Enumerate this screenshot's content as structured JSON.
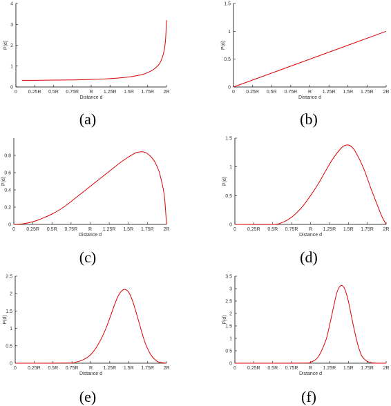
{
  "figure": {
    "curve_color": "#dd0000",
    "axis_color": "#000000"
  },
  "chart_data": [
    {
      "id": "a",
      "type": "line",
      "caption": "(a)",
      "xlabel": "Distance d",
      "ylabel": "P(d)",
      "xlim": [
        0,
        2
      ],
      "ylim": [
        0,
        4
      ],
      "xtick_labels": [
        "0",
        "0.25R",
        "0.5R",
        "0.75R",
        "R",
        "1.25R",
        "1.5R",
        "1.75R",
        "2R"
      ],
      "yticks": [
        0,
        1,
        2,
        3,
        4
      ],
      "ytick_labels": [
        "0",
        "1",
        "2",
        "3",
        "4"
      ],
      "x": [
        0.08,
        0.25,
        0.5,
        0.75,
        1.0,
        1.25,
        1.5,
        1.6,
        1.7,
        1.8,
        1.85,
        1.9,
        1.93,
        1.96,
        1.98,
        1.99,
        1.995,
        2.0
      ],
      "y": [
        0.32,
        0.32,
        0.33,
        0.34,
        0.36,
        0.4,
        0.48,
        0.54,
        0.62,
        0.78,
        0.9,
        1.08,
        1.28,
        1.6,
        2.0,
        2.4,
        2.8,
        3.2
      ]
    },
    {
      "id": "b",
      "type": "line",
      "caption": "(b)",
      "xlabel": "Distance d",
      "ylabel": "P(d)",
      "xlim": [
        0,
        2
      ],
      "ylim": [
        0,
        1.5
      ],
      "xtick_labels": [
        "0",
        "0.25R",
        "0.5R",
        "0.75R",
        "R",
        "1.25R",
        "1.5R",
        "1.75R",
        "2R"
      ],
      "yticks": [
        0,
        0.5,
        1,
        1.5
      ],
      "ytick_labels": [
        "0",
        "0.5",
        "1",
        "1.5"
      ],
      "x": [
        0,
        2
      ],
      "y": [
        0,
        1.0
      ]
    },
    {
      "id": "c",
      "type": "line",
      "caption": "(c)",
      "xlabel": "Distance d",
      "ylabel": "P(d)",
      "xlim": [
        0,
        2
      ],
      "ylim": [
        0,
        1
      ],
      "xtick_labels": [
        "0",
        "0.25R",
        "0.5R",
        "0.75R",
        "R",
        "1.25R",
        "1.5R",
        "1.75R",
        "2R"
      ],
      "yticks": [
        0,
        0.2,
        0.4,
        0.6,
        0.8
      ],
      "ytick_labels": [
        "0",
        "0.2",
        "0.4",
        "0.6",
        "0.8"
      ],
      "x": [
        0,
        0.1,
        0.2,
        0.3,
        0.4,
        0.5,
        0.6,
        0.7,
        0.8,
        0.9,
        1.0,
        1.1,
        1.2,
        1.3,
        1.4,
        1.5,
        1.6,
        1.65,
        1.7,
        1.75,
        1.8,
        1.85,
        1.9,
        1.93,
        1.96,
        1.98,
        2.0
      ],
      "y": [
        0,
        0.005,
        0.02,
        0.045,
        0.08,
        0.12,
        0.17,
        0.23,
        0.3,
        0.37,
        0.44,
        0.51,
        0.58,
        0.65,
        0.72,
        0.78,
        0.83,
        0.84,
        0.84,
        0.82,
        0.78,
        0.72,
        0.62,
        0.52,
        0.4,
        0.26,
        0
      ]
    },
    {
      "id": "d",
      "type": "line",
      "caption": "(d)",
      "xlabel": "Distance d",
      "ylabel": "P(d)",
      "xlim": [
        0,
        2
      ],
      "ylim": [
        0,
        1.5
      ],
      "xtick_labels": [
        "0",
        "0.25R",
        "0.5R",
        "0.75R",
        "R",
        "1.25R",
        "1.5R",
        "1.75R",
        "2R"
      ],
      "yticks": [
        0,
        0.5,
        1,
        1.5
      ],
      "ytick_labels": [
        "0",
        "0.5",
        "1",
        "1.5"
      ],
      "x": [
        0,
        0.5,
        0.6,
        0.7,
        0.8,
        0.9,
        1.0,
        1.1,
        1.2,
        1.3,
        1.4,
        1.45,
        1.5,
        1.55,
        1.6,
        1.7,
        1.8,
        1.9,
        1.95,
        2.0
      ],
      "y": [
        0,
        0,
        0.02,
        0.08,
        0.18,
        0.32,
        0.5,
        0.7,
        0.93,
        1.15,
        1.32,
        1.37,
        1.38,
        1.34,
        1.25,
        0.98,
        0.62,
        0.28,
        0.12,
        0
      ]
    },
    {
      "id": "e",
      "type": "line",
      "caption": "(e)",
      "xlabel": "Distance d",
      "ylabel": "P(d)",
      "xlim": [
        0,
        2
      ],
      "ylim": [
        0,
        2.5
      ],
      "xtick_labels": [
        "0",
        "0.25R",
        "0.5R",
        "0.75R",
        "R",
        "1.25R",
        "1.5R",
        "1.75R",
        "2R"
      ],
      "yticks": [
        0,
        0.5,
        1,
        1.5,
        2,
        2.5
      ],
      "ytick_labels": [
        "0",
        "0.5",
        "1",
        "1.5",
        "2",
        "2.5"
      ],
      "x": [
        0,
        0.7,
        0.8,
        0.9,
        1.0,
        1.1,
        1.2,
        1.3,
        1.35,
        1.4,
        1.45,
        1.5,
        1.55,
        1.6,
        1.7,
        1.75,
        1.8,
        1.85,
        1.9,
        2.0
      ],
      "y": [
        0,
        0.005,
        0.03,
        0.1,
        0.25,
        0.55,
        1.0,
        1.6,
        1.88,
        2.06,
        2.12,
        2.04,
        1.8,
        1.45,
        0.7,
        0.42,
        0.22,
        0.1,
        0.03,
        0
      ]
    },
    {
      "id": "f",
      "type": "line",
      "caption": "(f)",
      "xlabel": "Distance d",
      "ylabel": "P(d)",
      "xlim": [
        0,
        2
      ],
      "ylim": [
        0,
        3.5
      ],
      "xtick_labels": [
        "0",
        "0.25R",
        "0.5R",
        "0.75R",
        "R",
        "1.25R",
        "1.5R",
        "1.75R",
        "2R"
      ],
      "yticks": [
        0,
        0.5,
        1,
        1.5,
        2,
        2.5,
        3,
        3.5
      ],
      "ytick_labels": [
        "0",
        "0.5",
        "1",
        "1.5",
        "2",
        "2.5",
        "3",
        "3.5"
      ],
      "x": [
        0,
        0.9,
        1.0,
        1.1,
        1.2,
        1.25,
        1.3,
        1.35,
        1.4,
        1.45,
        1.5,
        1.55,
        1.6,
        1.65,
        1.7,
        1.8,
        2.0
      ],
      "y": [
        0,
        0.005,
        0.04,
        0.25,
        0.9,
        1.5,
        2.2,
        2.85,
        3.12,
        3.0,
        2.5,
        1.75,
        1.05,
        0.5,
        0.2,
        0.02,
        0
      ]
    }
  ]
}
